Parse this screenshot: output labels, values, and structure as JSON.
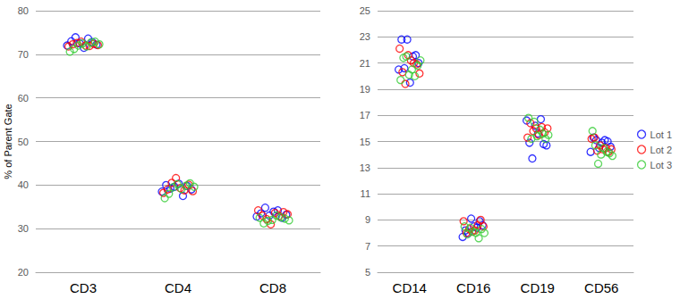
{
  "chart_data": [
    {
      "type": "scatter",
      "y_label": "% of Parent Gate",
      "categories": [
        "CD3",
        "CD4",
        "CD8"
      ],
      "ylim": [
        20,
        80
      ],
      "yticks": [
        20,
        30,
        40,
        50,
        60,
        70,
        80
      ],
      "grid": true,
      "marker": "open_circle",
      "series": [
        {
          "name": "Lot 1",
          "color": "#0000FF",
          "values": [
            [
              72.0,
              73.0,
              73.9,
              72.5,
              71.5,
              73.6,
              72.8,
              72.2
            ],
            [
              38.5,
              40.0,
              39.2,
              39.6,
              40.3,
              37.5,
              39.8,
              39.0
            ],
            [
              32.8,
              33.5,
              34.8,
              33.0,
              33.9,
              34.2,
              32.5,
              33.2
            ]
          ]
        },
        {
          "name": "Lot 2",
          "color": "#FF0000",
          "values": [
            [
              71.8,
              72.3,
              72.6,
              72.9,
              72.0,
              71.9,
              72.4,
              72.1
            ],
            [
              38.2,
              39.0,
              40.5,
              41.6,
              39.3,
              38.8,
              40.1,
              38.6
            ],
            [
              34.2,
              33.0,
              32.2,
              31.0,
              33.6,
              32.9,
              33.8,
              33.3
            ]
          ]
        },
        {
          "name": "Lot 3",
          "color": "#33CC33",
          "values": [
            [
              70.6,
              71.2,
              72.0,
              72.5,
              71.8,
              72.7,
              72.9,
              72.3
            ],
            [
              37.0,
              38.0,
              39.5,
              40.2,
              39.1,
              39.8,
              40.4,
              39.6
            ],
            [
              32.5,
              31.2,
              31.8,
              32.0,
              33.0,
              32.6,
              32.3,
              31.9
            ]
          ]
        }
      ]
    },
    {
      "type": "scatter",
      "categories": [
        "CD14",
        "CD16",
        "CD19",
        "CD56"
      ],
      "ylim": [
        5,
        25
      ],
      "yticks": [
        5,
        7,
        9,
        11,
        13,
        15,
        17,
        19,
        21,
        23,
        25
      ],
      "grid": true,
      "legend": "right",
      "marker": "open_circle",
      "series": [
        {
          "name": "Lot 1",
          "color": "#0000FF",
          "values": [
            [
              20.5,
              22.8,
              20.6,
              22.8,
              19.5,
              21.5,
              21.6,
              21.0
            ],
            [
              7.7,
              8.2,
              8.0,
              9.1,
              8.5,
              8.4,
              8.9,
              8.6
            ],
            [
              16.6,
              14.9,
              13.7,
              16.2,
              15.6,
              16.7,
              14.8,
              14.7
            ],
            [
              14.2,
              15.3,
              15.1,
              14.5,
              14.9,
              15.1,
              15.0,
              14.6
            ]
          ]
        },
        {
          "name": "Lot 2",
          "color": "#FF0000",
          "values": [
            [
              22.1,
              20.3,
              19.4,
              21.6,
              21.2,
              21.0,
              20.9,
              20.2
            ],
            [
              8.9,
              8.0,
              8.3,
              8.1,
              8.2,
              8.6,
              9.0,
              8.5
            ],
            [
              15.3,
              16.4,
              15.8,
              16.0,
              15.5,
              16.1,
              15.7,
              16.0
            ],
            [
              15.2,
              15.3,
              14.3,
              14.7,
              14.4,
              14.5,
              14.2,
              14.4
            ]
          ]
        },
        {
          "name": "Lot 3",
          "color": "#33CC33",
          "values": [
            [
              19.7,
              21.4,
              21.5,
              20.1,
              20.5,
              20.0,
              20.8,
              21.2
            ],
            [
              8.5,
              7.9,
              8.4,
              8.1,
              8.0,
              7.6,
              8.3,
              8.0
            ],
            [
              16.8,
              15.2,
              16.5,
              15.4,
              15.9,
              15.6,
              15.2,
              15.5
            ],
            [
              15.8,
              14.7,
              13.3,
              14.0,
              14.5,
              14.2,
              14.1,
              13.9
            ]
          ]
        }
      ]
    }
  ]
}
